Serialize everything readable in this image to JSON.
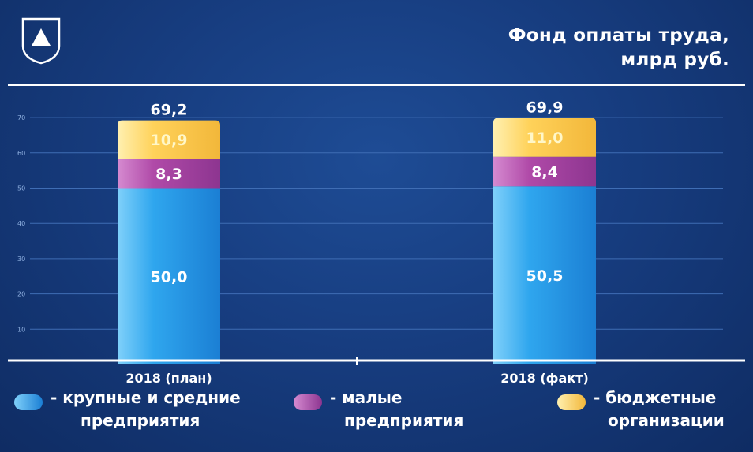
{
  "header": {
    "title_line1": "Фонд оплаты труда,",
    "title_line2": "млрд руб."
  },
  "colors": {
    "large_medium": "#2fa6ee",
    "small": "#b04aa8",
    "budget": "#ffd25a"
  },
  "chart_data": {
    "type": "bar",
    "stacked": true,
    "categories": [
      "2018 (план)",
      "2018 (факт)"
    ],
    "series": [
      {
        "name": "- крупные и средние предприятия",
        "values": [
          50.0,
          50.5
        ],
        "labels": [
          "50,0",
          "50,5"
        ],
        "color": "#2fa6ee"
      },
      {
        "name": "- малые предприятия",
        "values": [
          8.3,
          8.4
        ],
        "labels": [
          "8,3",
          "8,4"
        ],
        "color": "#b04aa8"
      },
      {
        "name": "- бюджетные организации",
        "values": [
          10.9,
          11.0
        ],
        "labels": [
          "10,9",
          "11,0"
        ],
        "color": "#ffd25a"
      }
    ],
    "totals": [
      69.2,
      69.9
    ],
    "total_labels": [
      "69,2",
      "69,9"
    ],
    "y_ticks": [
      10,
      20,
      30,
      40,
      50,
      60,
      70
    ],
    "ylim": [
      0,
      70
    ],
    "grid": true
  },
  "legend": [
    {
      "line1": "- крупные и средние",
      "line2": "предприятия",
      "color": "#2fa6ee"
    },
    {
      "line1": "- малые",
      "line2": "предприятия",
      "color": "#b04aa8"
    },
    {
      "line1": "- бюджетные",
      "line2": "организации",
      "color": "#ffd25a"
    }
  ]
}
